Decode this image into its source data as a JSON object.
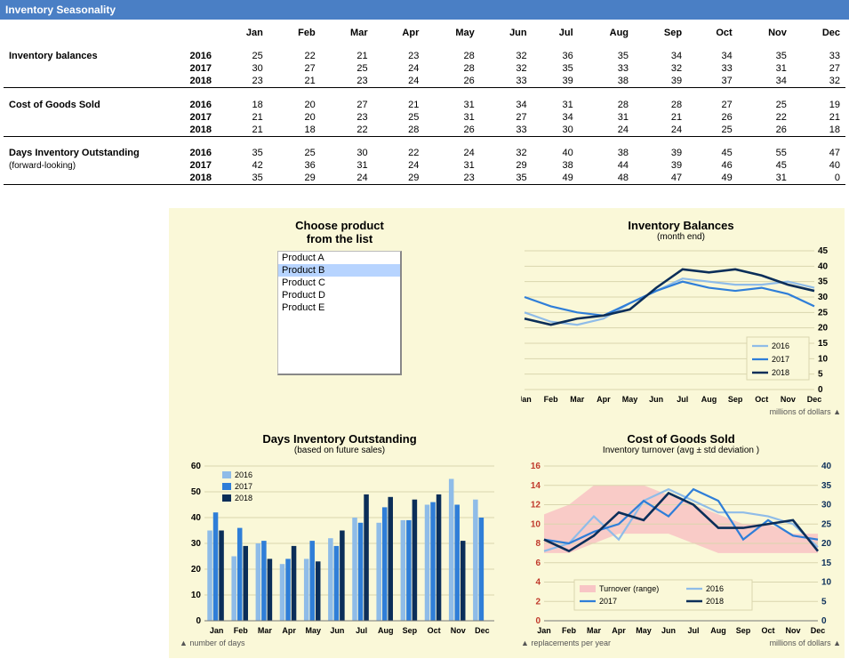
{
  "header": {
    "title": "Inventory Seasonality"
  },
  "months": [
    "Jan",
    "Feb",
    "Mar",
    "Apr",
    "May",
    "Jun",
    "Jul",
    "Aug",
    "Sep",
    "Oct",
    "Nov",
    "Dec"
  ],
  "sections": [
    {
      "label": "Inventory balances",
      "sublabel": "",
      "rows": [
        {
          "year": "2016",
          "values": [
            25,
            22,
            21,
            23,
            28,
            32,
            36,
            35,
            34,
            34,
            35,
            33
          ]
        },
        {
          "year": "2017",
          "values": [
            30,
            27,
            25,
            24,
            28,
            32,
            35,
            33,
            32,
            33,
            31,
            27
          ]
        },
        {
          "year": "2018",
          "values": [
            23,
            21,
            23,
            24,
            26,
            33,
            39,
            38,
            39,
            37,
            34,
            32
          ]
        }
      ]
    },
    {
      "label": "Cost of Goods Sold",
      "sublabel": "",
      "rows": [
        {
          "year": "2016",
          "values": [
            18,
            20,
            27,
            21,
            31,
            34,
            31,
            28,
            28,
            27,
            25,
            19
          ]
        },
        {
          "year": "2017",
          "values": [
            21,
            20,
            23,
            25,
            31,
            27,
            34,
            31,
            21,
            26,
            22,
            21
          ]
        },
        {
          "year": "2018",
          "values": [
            21,
            18,
            22,
            28,
            26,
            33,
            30,
            24,
            24,
            25,
            26,
            18
          ]
        }
      ]
    },
    {
      "label": "Days Inventory Outstanding",
      "sublabel": "(forward-looking)",
      "rows": [
        {
          "year": "2016",
          "values": [
            35,
            25,
            30,
            22,
            24,
            32,
            40,
            38,
            39,
            45,
            55,
            47
          ]
        },
        {
          "year": "2017",
          "values": [
            42,
            36,
            31,
            24,
            31,
            29,
            38,
            44,
            39,
            46,
            45,
            40
          ]
        },
        {
          "year": "2018",
          "values": [
            35,
            29,
            24,
            29,
            23,
            35,
            49,
            48,
            47,
            49,
            31,
            0
          ]
        }
      ]
    }
  ],
  "dashboard": {
    "product_picker": {
      "title1": "Choose product",
      "title2": "from the list",
      "items": [
        "Product A",
        "Product B",
        "Product C",
        "Product D",
        "Product E"
      ],
      "selected_index": 1
    },
    "inv_balances_chart": {
      "title": "Inventory Balances",
      "subtitle": "(month end)",
      "type": "line",
      "categories": [
        "Jan",
        "Feb",
        "Mar",
        "Apr",
        "May",
        "Jun",
        "Jul",
        "Aug",
        "Sep",
        "Oct",
        "Nov",
        "Dec"
      ],
      "ylim": [
        0,
        45
      ],
      "ytick_step": 5,
      "series": [
        {
          "name": "2016",
          "color": "#8fbce8",
          "width": 2.2,
          "values": [
            25,
            22,
            21,
            23,
            28,
            32,
            36,
            35,
            34,
            34,
            35,
            33
          ]
        },
        {
          "name": "2017",
          "color": "#2f7ed8",
          "width": 2.2,
          "values": [
            30,
            27,
            25,
            24,
            28,
            32,
            35,
            33,
            32,
            33,
            31,
            27
          ]
        },
        {
          "name": "2018",
          "color": "#0b2e59",
          "width": 2.6,
          "values": [
            23,
            21,
            23,
            24,
            26,
            33,
            39,
            38,
            39,
            37,
            34,
            32
          ]
        }
      ],
      "grid_color": "#d9d6ae",
      "background": "#faf8d8",
      "right_note": "millions of dollars ▲"
    },
    "dio_chart": {
      "title": "Days Inventory Outstanding",
      "subtitle": "(based on future sales)",
      "type": "bar",
      "categories": [
        "Jan",
        "Feb",
        "Mar",
        "Apr",
        "May",
        "Jun",
        "Jul",
        "Aug",
        "Sep",
        "Oct",
        "Nov",
        "Dec"
      ],
      "ylim": [
        0,
        60
      ],
      "ytick_step": 10,
      "series": [
        {
          "name": "2016",
          "color": "#8fbce8",
          "values": [
            35,
            25,
            30,
            22,
            24,
            32,
            40,
            38,
            39,
            45,
            55,
            47
          ]
        },
        {
          "name": "2017",
          "color": "#2f7ed8",
          "values": [
            42,
            36,
            31,
            24,
            31,
            29,
            38,
            44,
            39,
            46,
            45,
            40
          ]
        },
        {
          "name": "2018",
          "color": "#0b2e59",
          "values": [
            35,
            29,
            24,
            29,
            23,
            35,
            49,
            48,
            47,
            49,
            31,
            0
          ]
        }
      ],
      "grid_color": "#d9d6ae",
      "background": "#faf8d8",
      "left_note": "▲ number of days"
    },
    "cogs_chart": {
      "title": "Cost of Goods Sold",
      "subtitle": "Inventory turnover (avg ± std deviation )",
      "type": "line_dual",
      "categories": [
        "Jan",
        "Feb",
        "Mar",
        "Apr",
        "May",
        "Jun",
        "Jul",
        "Aug",
        "Sep",
        "Oct",
        "Nov",
        "Dec"
      ],
      "ylim_left": [
        0,
        16
      ],
      "ytick_left": 2,
      "left_color": "#c0392b",
      "ylim_right": [
        0,
        40
      ],
      "ytick_right": 5,
      "right_color": "#0b2e59",
      "range_band": {
        "name": "Turnover (range)",
        "color": "#f8c5c5",
        "upper": [
          11,
          12,
          14,
          14,
          14,
          13,
          12,
          11,
          10,
          10,
          9,
          9
        ],
        "lower": [
          7,
          7,
          8,
          9,
          9,
          9,
          8,
          7,
          7,
          7,
          7,
          7
        ]
      },
      "series": [
        {
          "name": "2016",
          "color": "#8fbce8",
          "width": 2.2,
          "values": [
            18,
            20,
            27,
            21,
            31,
            34,
            31,
            28,
            28,
            27,
            25,
            19
          ]
        },
        {
          "name": "2017",
          "color": "#2f7ed8",
          "width": 2.2,
          "values": [
            21,
            20,
            23,
            25,
            31,
            27,
            34,
            31,
            21,
            26,
            22,
            21
          ]
        },
        {
          "name": "2018",
          "color": "#0b2e59",
          "width": 2.6,
          "values": [
            21,
            18,
            22,
            28,
            26,
            33,
            30,
            24,
            24,
            25,
            26,
            18
          ]
        }
      ],
      "grid_color": "#d9d6ae",
      "background": "#faf8d8",
      "left_note": "▲ replacements per year",
      "right_note": "millions of dollars ▲"
    }
  }
}
